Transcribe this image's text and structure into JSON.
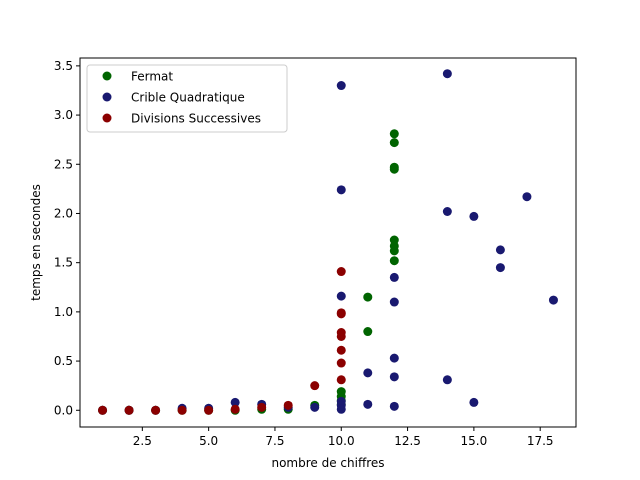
{
  "chart_data": {
    "type": "scatter",
    "xlabel": "nombre de chiffres",
    "ylabel": "temps en secondes",
    "xlim": [
      0.15,
      18.85
    ],
    "ylim": [
      -0.17,
      3.58
    ],
    "xticks": [
      2.5,
      5.0,
      7.5,
      10.0,
      12.5,
      15.0,
      17.5
    ],
    "xtick_labels": [
      "2.5",
      "5.0",
      "7.5",
      "10.0",
      "12.5",
      "15.0",
      "17.5"
    ],
    "yticks": [
      0.0,
      0.5,
      1.0,
      1.5,
      2.0,
      2.5,
      3.0,
      3.5
    ],
    "ytick_labels": [
      "0.0",
      "0.5",
      "1.0",
      "1.5",
      "2.0",
      "2.5",
      "3.0",
      "3.5"
    ],
    "grid": false,
    "legend_position": "top-left",
    "series": [
      {
        "name": "Fermat",
        "color": "#006400",
        "points": [
          [
            1,
            0.0
          ],
          [
            2,
            0.0
          ],
          [
            3,
            0.0
          ],
          [
            4,
            0.0
          ],
          [
            5,
            0.0
          ],
          [
            6,
            0.0
          ],
          [
            7,
            0.01
          ],
          [
            8,
            0.01
          ],
          [
            9,
            0.05
          ],
          [
            10,
            0.19
          ],
          [
            10,
            0.14
          ],
          [
            10,
            0.1
          ],
          [
            10,
            0.06
          ],
          [
            11,
            1.15
          ],
          [
            11,
            0.8
          ],
          [
            12,
            2.81
          ],
          [
            12,
            2.72
          ],
          [
            12,
            2.47
          ],
          [
            12,
            2.45
          ],
          [
            12,
            1.73
          ],
          [
            12,
            1.67
          ],
          [
            12,
            1.62
          ],
          [
            12,
            1.52
          ]
        ]
      },
      {
        "name": "Crible Quadratique",
        "color": "#191970",
        "points": [
          [
            1,
            0.0
          ],
          [
            2,
            0.0
          ],
          [
            3,
            0.0
          ],
          [
            4,
            0.02
          ],
          [
            5,
            0.02
          ],
          [
            6,
            0.08
          ],
          [
            7,
            0.06
          ],
          [
            8,
            0.03
          ],
          [
            9,
            0.03
          ],
          [
            10,
            3.3
          ],
          [
            10,
            2.24
          ],
          [
            10,
            1.16
          ],
          [
            10,
            0.09
          ],
          [
            10,
            0.05
          ],
          [
            10,
            0.01
          ],
          [
            11,
            0.38
          ],
          [
            11,
            0.06
          ],
          [
            12,
            1.35
          ],
          [
            12,
            1.1
          ],
          [
            12,
            0.53
          ],
          [
            12,
            0.34
          ],
          [
            12,
            0.04
          ],
          [
            14,
            3.42
          ],
          [
            14,
            2.02
          ],
          [
            14,
            0.31
          ],
          [
            15,
            1.97
          ],
          [
            15,
            0.08
          ],
          [
            16,
            1.63
          ],
          [
            16,
            1.45
          ],
          [
            17,
            2.17
          ],
          [
            18,
            1.12
          ]
        ]
      },
      {
        "name": "Divisions Successives",
        "color": "#8b0000",
        "points": [
          [
            1,
            0.0
          ],
          [
            2,
            0.0
          ],
          [
            3,
            0.0
          ],
          [
            4,
            0.0
          ],
          [
            5,
            0.0
          ],
          [
            6,
            0.01
          ],
          [
            7,
            0.03
          ],
          [
            8,
            0.05
          ],
          [
            9,
            0.25
          ],
          [
            10,
            1.41
          ],
          [
            10,
            0.99
          ],
          [
            10,
            0.98
          ],
          [
            10,
            0.79
          ],
          [
            10,
            0.75
          ],
          [
            10,
            0.61
          ],
          [
            10,
            0.48
          ],
          [
            10,
            0.31
          ]
        ]
      }
    ]
  }
}
